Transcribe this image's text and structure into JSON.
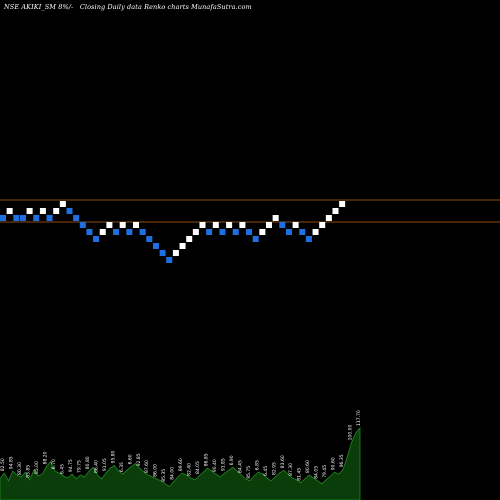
{
  "header": {
    "symbol": "NSE AKIKI_SM",
    "change": "8%",
    "description": "Closing Daily data Renko charts MunafaSutra.com"
  },
  "chart_data": {
    "type": "renko",
    "colors": {
      "background": "#000000",
      "up": "#ffffff",
      "down": "#1e6fe0",
      "level_line": "#8b4a12",
      "volume": "#0b3d0b",
      "volume_edge": "#1e8a1e",
      "volume_label": "#ffffff"
    },
    "bricks": [
      {
        "dir": "down",
        "level": 0
      },
      {
        "dir": "up",
        "level": 1
      },
      {
        "dir": "down",
        "level": 0
      },
      {
        "dir": "down",
        "level": 0
      },
      {
        "dir": "up",
        "level": 1
      },
      {
        "dir": "down",
        "level": 0
      },
      {
        "dir": "up",
        "level": 1
      },
      {
        "dir": "down",
        "level": 0
      },
      {
        "dir": "up",
        "level": 1
      },
      {
        "dir": "up",
        "level": 2
      },
      {
        "dir": "down",
        "level": 1
      },
      {
        "dir": "down",
        "level": 0
      },
      {
        "dir": "down",
        "level": -1
      },
      {
        "dir": "down",
        "level": -2
      },
      {
        "dir": "down",
        "level": -3
      },
      {
        "dir": "up",
        "level": -2
      },
      {
        "dir": "up",
        "level": -1
      },
      {
        "dir": "down",
        "level": -2
      },
      {
        "dir": "up",
        "level": -1
      },
      {
        "dir": "down",
        "level": -2
      },
      {
        "dir": "up",
        "level": -1
      },
      {
        "dir": "down",
        "level": -2
      },
      {
        "dir": "down",
        "level": -3
      },
      {
        "dir": "down",
        "level": -4
      },
      {
        "dir": "down",
        "level": -5
      },
      {
        "dir": "down",
        "level": -6
      },
      {
        "dir": "up",
        "level": -5
      },
      {
        "dir": "up",
        "level": -4
      },
      {
        "dir": "up",
        "level": -3
      },
      {
        "dir": "up",
        "level": -2
      },
      {
        "dir": "up",
        "level": -1
      },
      {
        "dir": "down",
        "level": -2
      },
      {
        "dir": "up",
        "level": -1
      },
      {
        "dir": "down",
        "level": -2
      },
      {
        "dir": "up",
        "level": -1
      },
      {
        "dir": "down",
        "level": -2
      },
      {
        "dir": "up",
        "level": -1
      },
      {
        "dir": "down",
        "level": -2
      },
      {
        "dir": "down",
        "level": -3
      },
      {
        "dir": "up",
        "level": -2
      },
      {
        "dir": "up",
        "level": -1
      },
      {
        "dir": "up",
        "level": 0
      },
      {
        "dir": "down",
        "level": -1
      },
      {
        "dir": "down",
        "level": -2
      },
      {
        "dir": "up",
        "level": -1
      },
      {
        "dir": "down",
        "level": -2
      },
      {
        "dir": "down",
        "level": -3
      },
      {
        "dir": "up",
        "level": -2
      },
      {
        "dir": "up",
        "level": -1
      },
      {
        "dir": "up",
        "level": 0
      },
      {
        "dir": "up",
        "level": 1
      },
      {
        "dir": "up",
        "level": 2
      }
    ],
    "level_lines": [
      2,
      -1
    ],
    "volume": {
      "bars": [
        22,
        28,
        20,
        30,
        26,
        24,
        29,
        21,
        31,
        25,
        27,
        35,
        40,
        30,
        28,
        25,
        23,
        27,
        22,
        26,
        24,
        30,
        34,
        26,
        22,
        28,
        33,
        36,
        30,
        27,
        31,
        35,
        38,
        33,
        29,
        26,
        24,
        22,
        20,
        17,
        14,
        19,
        24,
        28,
        26,
        23,
        21,
        25,
        29,
        33,
        30,
        27,
        24,
        28,
        31,
        34,
        30,
        26,
        22,
        20,
        25,
        29,
        27,
        23,
        20,
        24,
        28,
        31,
        27,
        23,
        21,
        18,
        22,
        26,
        23,
        20,
        17,
        21,
        25,
        29,
        27,
        32,
        45,
        60,
        70,
        75
      ],
      "labels": [
        {
          "i": 1,
          "text": "82.50"
        },
        {
          "i": 3,
          "text": "94.85"
        },
        {
          "i": 5,
          "text": "80.30"
        },
        {
          "i": 7,
          "text": "83.85"
        },
        {
          "i": 9,
          "text": "85.00"
        },
        {
          "i": 11,
          "text": "88.20"
        },
        {
          "i": 13,
          "text": "6.70"
        },
        {
          "i": 15,
          "text": "6.45"
        },
        {
          "i": 17,
          "text": "94.75"
        },
        {
          "i": 19,
          "text": "79.75"
        },
        {
          "i": 21,
          "text": "80.80"
        },
        {
          "i": 23,
          "text": "86.40"
        },
        {
          "i": 25,
          "text": "91.05"
        },
        {
          "i": 27,
          "text": "95.80"
        },
        {
          "i": 29,
          "text": "6.35"
        },
        {
          "i": 31,
          "text": "6.60"
        },
        {
          "i": 33,
          "text": "92.85"
        },
        {
          "i": 35,
          "text": "87.60"
        },
        {
          "i": 37,
          "text": "86.00"
        },
        {
          "i": 39,
          "text": "85.35"
        },
        {
          "i": 41,
          "text": "84.00"
        },
        {
          "i": 43,
          "text": "89.60"
        },
        {
          "i": 45,
          "text": "82.40"
        },
        {
          "i": 47,
          "text": "84.05"
        },
        {
          "i": 49,
          "text": "86.85"
        },
        {
          "i": 51,
          "text": "90.40"
        },
        {
          "i": 53,
          "text": "91.85"
        },
        {
          "i": 55,
          "text": "6.90"
        },
        {
          "i": 57,
          "text": "84.45"
        },
        {
          "i": 59,
          "text": "85.75"
        },
        {
          "i": 61,
          "text": "6.85"
        },
        {
          "i": 63,
          "text": "6.45"
        },
        {
          "i": 65,
          "text": "82.95"
        },
        {
          "i": 67,
          "text": "83.60"
        },
        {
          "i": 69,
          "text": "87.30"
        },
        {
          "i": 71,
          "text": "81.45"
        },
        {
          "i": 73,
          "text": "80.60"
        },
        {
          "i": 75,
          "text": "84.05"
        },
        {
          "i": 77,
          "text": "79.45"
        },
        {
          "i": 79,
          "text": "90.60"
        },
        {
          "i": 81,
          "text": "96.35"
        },
        {
          "i": 83,
          "text": "100.00"
        },
        {
          "i": 85,
          "text": "117.70"
        }
      ]
    }
  }
}
